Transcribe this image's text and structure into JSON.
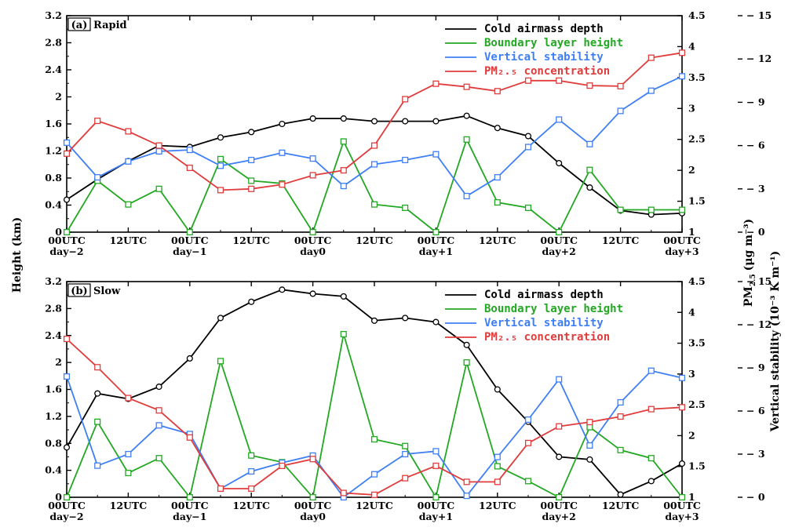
{
  "y_label": "Height (km)",
  "y2_label": "PM",
  "y2_label_sub": "2.5",
  "y2_label_unit": "(μg m⁻³)",
  "y3_label": "Vertical stability (10⁻³ K m⁻¹)",
  "colors": {
    "cold": "#000000",
    "blh": "#22a822",
    "stab": "#3f7ff5",
    "pm": "#e03c3c"
  },
  "chart_data": [
    {
      "type": "line",
      "title": "(a) Rapid",
      "panel_tag": "(a)",
      "panel_name": "Rapid",
      "x_ticks": [
        "00UTC",
        "12UTC",
        "00UTC",
        "12UTC",
        "00UTC",
        "12UTC",
        "00UTC",
        "12UTC",
        "00UTC",
        "12UTC",
        "00UTC"
      ],
      "x_day_labels": [
        "day−2",
        "day−1",
        "day0",
        "day+1",
        "day+2",
        "day+3"
      ],
      "x_range": [
        0,
        20
      ],
      "y_left_ticks": [
        "0",
        "0.4",
        "0.8",
        "1.2",
        "1.6",
        "2",
        "2.4",
        "2.8",
        "3.2"
      ],
      "y_left_range": [
        0,
        3.2
      ],
      "y_pm_ticks": [
        "1",
        "1.5",
        "2",
        "2.5",
        "3",
        "3.5",
        "4",
        "4.5"
      ],
      "y_pm_range": [
        1,
        4.5
      ],
      "y_stab_ticks": [
        "0",
        "3",
        "6",
        "9",
        "12",
        "15"
      ],
      "y_stab_range": [
        0,
        15
      ],
      "legend_position": "top-right",
      "series": [
        {
          "name": "Cold airmass depth",
          "axis": "left",
          "marker": "circle",
          "color_key": "cold",
          "values": [
            0.48,
            0.78,
            1.05,
            1.28,
            1.26,
            1.4,
            1.48,
            1.6,
            1.68,
            1.68,
            1.64,
            1.64,
            1.64,
            1.72,
            1.54,
            1.42,
            1.02,
            0.66,
            0.32,
            0.26,
            0.28
          ]
        },
        {
          "name": "Boundary layer height",
          "axis": "left",
          "marker": "square",
          "color_key": "blh",
          "values": [
            0.0,
            0.76,
            0.41,
            0.64,
            0.0,
            1.08,
            0.76,
            0.72,
            0.0,
            1.34,
            0.41,
            0.36,
            0.0,
            1.37,
            0.44,
            0.36,
            0.0,
            0.92,
            0.33,
            0.33,
            0.33
          ]
        },
        {
          "name": "Vertical stability",
          "axis": "stability",
          "marker": "square",
          "color_key": "stab",
          "values": [
            6.2,
            3.8,
            4.9,
            5.6,
            5.7,
            4.6,
            5.0,
            5.5,
            5.1,
            3.2,
            4.7,
            5.0,
            5.4,
            2.5,
            3.8,
            5.9,
            7.8,
            6.1,
            8.4,
            9.8,
            10.8
          ]
        },
        {
          "name": "PM₂.₅ concentration",
          "axis": "pm",
          "marker": "square",
          "color_key": "pm",
          "values": [
            2.27,
            2.8,
            2.63,
            2.4,
            2.04,
            1.68,
            1.7,
            1.77,
            1.92,
            2.0,
            2.4,
            3.15,
            3.4,
            3.35,
            3.28,
            3.45,
            3.45,
            3.37,
            3.36,
            3.82,
            3.9
          ]
        }
      ]
    },
    {
      "type": "line",
      "title": "(b) Slow",
      "panel_tag": "(b)",
      "panel_name": "Slow",
      "x_ticks": [
        "00UTC",
        "12UTC",
        "00UTC",
        "12UTC",
        "00UTC",
        "12UTC",
        "00UTC",
        "12UTC",
        "00UTC",
        "12UTC",
        "00UTC"
      ],
      "x_day_labels": [
        "day−2",
        "day−1",
        "day0",
        "day+1",
        "day+2",
        "day+3"
      ],
      "x_range": [
        0,
        20
      ],
      "y_left_ticks": [
        "0",
        "0.4",
        "0.8",
        "1.2",
        "1.6",
        "2",
        "2.4",
        "2.8",
        "3.2"
      ],
      "y_left_range": [
        0,
        3.2
      ],
      "y_pm_ticks": [
        "1",
        "1.5",
        "2",
        "2.5",
        "3",
        "3.5",
        "4",
        "4.5"
      ],
      "y_pm_range": [
        1,
        4.5
      ],
      "y_stab_ticks": [
        "0",
        "3",
        "6",
        "9",
        "12",
        "15"
      ],
      "y_stab_range": [
        0,
        15
      ],
      "legend_position": "top-right",
      "series": [
        {
          "name": "Cold airmass depth",
          "axis": "left",
          "marker": "circle",
          "color_key": "cold",
          "values": [
            0.74,
            1.54,
            1.46,
            1.64,
            2.06,
            2.66,
            2.9,
            3.08,
            3.02,
            2.98,
            2.62,
            2.66,
            2.6,
            2.26,
            1.6,
            1.12,
            0.6,
            0.56,
            0.04,
            0.24,
            0.5
          ]
        },
        {
          "name": "Boundary layer height",
          "axis": "left",
          "marker": "square",
          "color_key": "blh",
          "values": [
            0.0,
            1.12,
            0.36,
            0.58,
            0.0,
            2.02,
            0.62,
            0.52,
            0.0,
            2.42,
            0.86,
            0.76,
            0.0,
            2.0,
            0.46,
            0.24,
            0.0,
            1.04,
            0.7,
            0.58,
            0.0
          ]
        },
        {
          "name": "Vertical stability",
          "axis": "stability",
          "marker": "square",
          "color_key": "stab",
          "values": [
            8.4,
            2.2,
            3.0,
            5.0,
            4.4,
            0.6,
            1.8,
            2.4,
            2.9,
            0.0,
            1.6,
            3.0,
            3.2,
            0.1,
            2.8,
            5.4,
            8.2,
            3.6,
            6.6,
            8.8,
            8.3
          ]
        },
        {
          "name": "PM₂.₅ concentration",
          "axis": "pm",
          "marker": "square",
          "color_key": "pm",
          "values": [
            3.57,
            3.11,
            2.61,
            2.41,
            1.97,
            1.14,
            1.14,
            1.51,
            1.62,
            1.07,
            1.04,
            1.31,
            1.51,
            1.25,
            1.25,
            1.88,
            2.15,
            2.22,
            2.31,
            2.43,
            2.46
          ]
        }
      ]
    }
  ]
}
